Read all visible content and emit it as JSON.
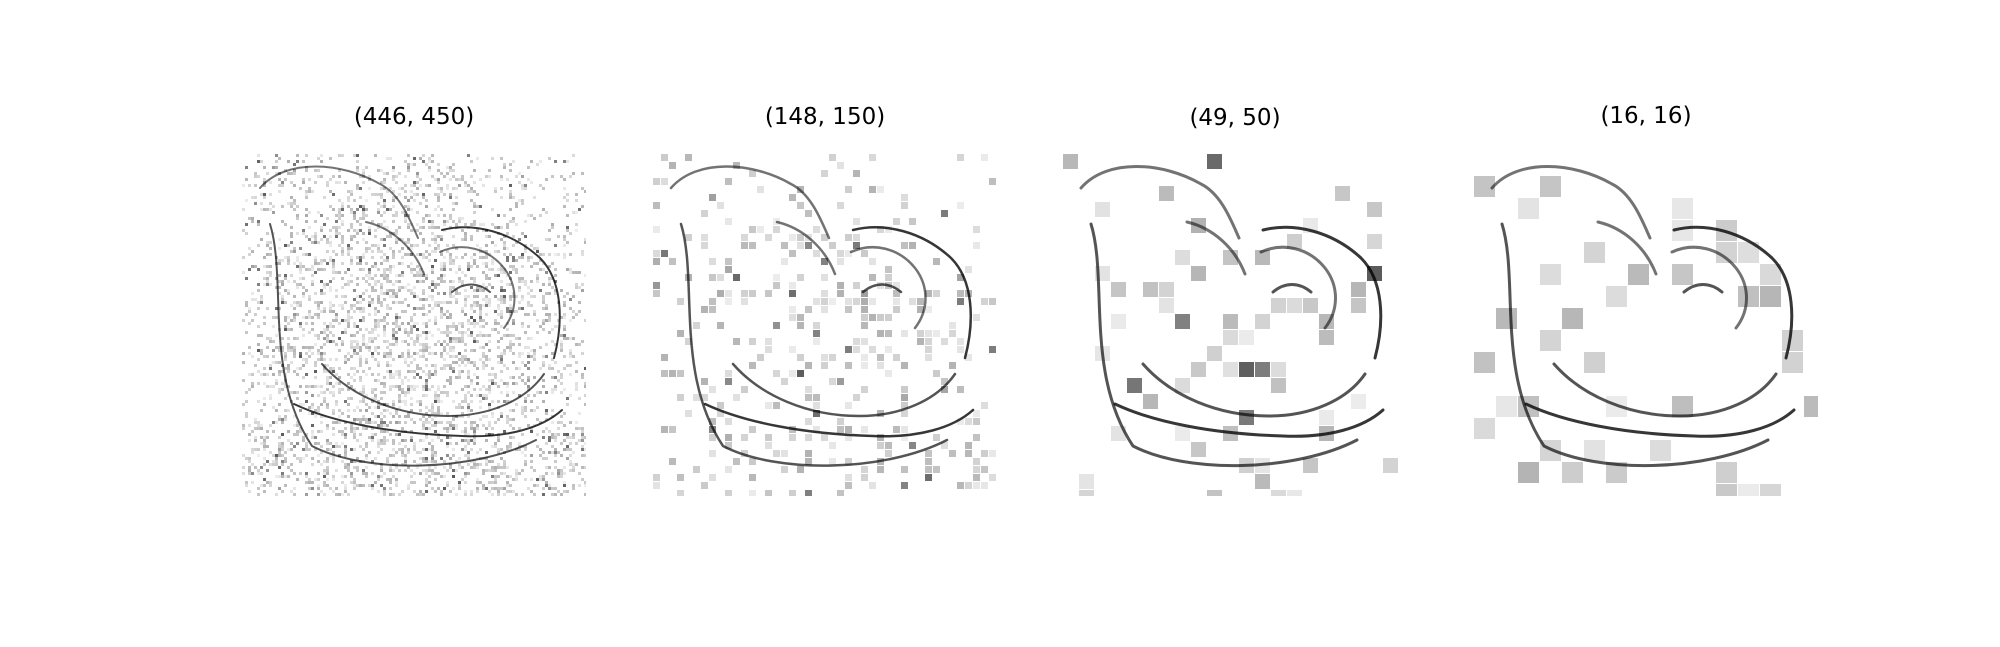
{
  "figure": {
    "panels": [
      {
        "title": "(446, 450)",
        "image": "cat-edge-image",
        "block_size": 3,
        "noise_level": 0.4,
        "dark_fraction": 0.18
      },
      {
        "title": "(148, 150)",
        "image": "cat-edge-image",
        "block_size": 8,
        "noise_level": 0.3,
        "dark_fraction": 0.14
      },
      {
        "title": "(49, 50)",
        "image": "cat-edge-image",
        "block_size": 16,
        "noise_level": 0.25,
        "dark_fraction": 0.1
      },
      {
        "title": "(16, 16)",
        "image": "cat-edge-image",
        "block_size": 22,
        "noise_level": 0.2,
        "dark_fraction": 0.08
      }
    ],
    "colors": {
      "background": "#ffffff",
      "ink": "#000000",
      "gray": "#888888"
    }
  }
}
